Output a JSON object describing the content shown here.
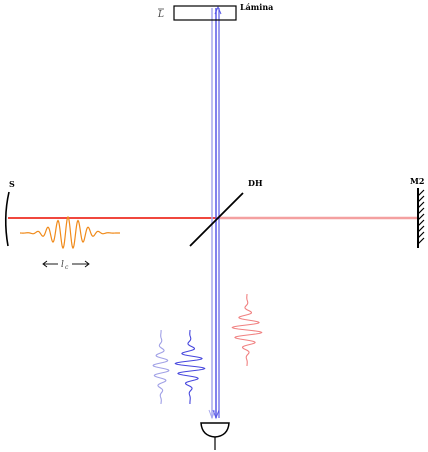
{
  "labels": {
    "source": "S",
    "beam_splitter": "DH",
    "mirror2": "M2",
    "plate": "Lámina",
    "plate_thickness": "L",
    "coherence_length": "l",
    "coherence_length_sub": "c"
  },
  "colors": {
    "source_beam": "#ee2d22",
    "transmitted_beam": "#f4a0a0",
    "reflected_beam": "#5a5ae6",
    "reflected_beam_faint": "#a8a8ee",
    "wave_orange": "#f08a1a",
    "wave_red": "#f08080",
    "wave_blue": "#4545dd",
    "wave_blue_faint": "#a0a0e6",
    "structure": "#000000"
  }
}
